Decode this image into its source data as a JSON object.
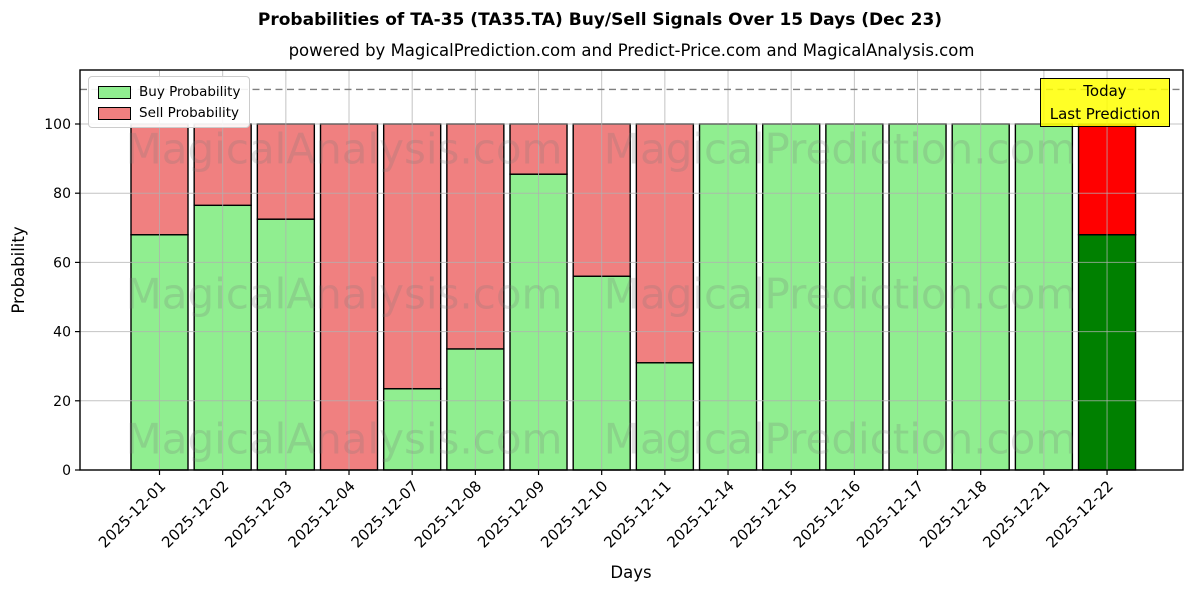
{
  "title": "Probabilities of TA-35 (TA35.TA) Buy/Sell Signals Over 15 Days (Dec 23)",
  "subtitle": "powered by MagicalPrediction.com and Predict-Price.com and MagicalAnalysis.com",
  "legend": {
    "buy_label": "Buy Probability",
    "sell_label": "Sell Probability"
  },
  "annotation": {
    "line1": "Today",
    "line2": "Last Prediction",
    "bg_color": "#ffff00"
  },
  "watermarks": {
    "left_text": "MagicalAnalysis.com",
    "right_text": "MagicalPrediction.com"
  },
  "colors": {
    "buy": "#90ee90",
    "sell": "#f08080",
    "buy_today": "#008000",
    "sell_today": "#ff0000",
    "bar_edge": "#000000",
    "grid": "#b0b0b0",
    "dashed_line": "#7f7f7f"
  },
  "chart_data": {
    "type": "bar",
    "stacked": true,
    "title": "Probabilities of TA-35 (TA35.TA) Buy/Sell Signals Over 15 Days (Dec 23)",
    "subtitle": "powered by MagicalPrediction.com and Predict-Price.com and MagicalAnalysis.com",
    "xlabel": "Days",
    "ylabel": "Probability",
    "categories": [
      "2025-12-01",
      "2025-12-02",
      "2025-12-03",
      "2025-12-04",
      "2025-12-07",
      "2025-12-08",
      "2025-12-09",
      "2025-12-10",
      "2025-12-11",
      "2025-12-14",
      "2025-12-15",
      "2025-12-16",
      "2025-12-17",
      "2025-12-18",
      "2025-12-21",
      "2025-12-22"
    ],
    "series": [
      {
        "name": "Buy Probability",
        "values": [
          68,
          76.5,
          72.5,
          0,
          23.5,
          35,
          85.5,
          56,
          31,
          100,
          100,
          100,
          100,
          100,
          100,
          68
        ]
      },
      {
        "name": "Sell Probability",
        "values": [
          32,
          23.5,
          27.5,
          100,
          76.5,
          65,
          14.5,
          44,
          69,
          0,
          0,
          0,
          0,
          0,
          0,
          32
        ]
      }
    ],
    "today_index": 15,
    "ylim": [
      0,
      115.6
    ],
    "yticks": [
      0,
      20,
      40,
      60,
      80,
      100
    ],
    "dashed_line_y": 110,
    "grid": true,
    "legend_position": "upper left"
  }
}
